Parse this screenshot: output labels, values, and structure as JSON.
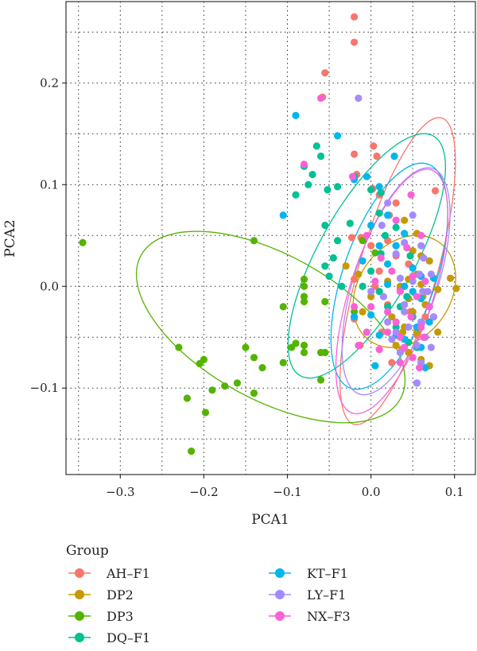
{
  "chart_data": {
    "type": "scatter",
    "xlabel": "PCA1",
    "ylabel": "PCA2",
    "xlim": [
      -0.365,
      0.125
    ],
    "ylim": [
      -0.185,
      0.28
    ],
    "x_ticks": [
      {
        "value": -0.3,
        "label": "−0.3"
      },
      {
        "value": -0.2,
        "label": "−0.2"
      },
      {
        "value": -0.1,
        "label": "−0.1"
      },
      {
        "value": 0.0,
        "label": "0.0"
      },
      {
        "value": 0.1,
        "label": "0.1"
      }
    ],
    "y_ticks": [
      {
        "value": -0.1,
        "label": "−0.1"
      },
      {
        "value": 0.0,
        "label": "0.0"
      },
      {
        "value": 0.1,
        "label": "0.1"
      },
      {
        "value": 0.2,
        "label": "0.2"
      }
    ],
    "grid": "dotted",
    "legend_title": "Group",
    "legend_position": "bottom",
    "series": [
      {
        "name": "AH–F1",
        "color": "#F8766D",
        "ellipse": {
          "cx": 0.032,
          "cy": 0.015,
          "rx": 0.172,
          "ry": 0.042,
          "angle": -74
        },
        "points": [
          [
            -0.02,
            0.265
          ],
          [
            -0.02,
            0.24
          ],
          [
            -0.055,
            0.21
          ],
          [
            -0.058,
            0.186
          ],
          [
            -0.02,
            0.13
          ],
          [
            0.003,
            0.138
          ],
          [
            0.007,
            0.128
          ],
          [
            -0.017,
            0.11
          ],
          [
            0.002,
            0.096
          ],
          [
            0.01,
            0.09
          ],
          [
            0.03,
            0.082
          ],
          [
            0.077,
            0.094
          ],
          [
            0.022,
            0.07
          ],
          [
            -0.023,
            0.048
          ],
          [
            -0.012,
            0.048
          ],
          [
            0.0,
            0.04
          ],
          [
            0.02,
            0.045
          ],
          [
            0.03,
            0.03
          ],
          [
            0.045,
            0.022
          ],
          [
            0.01,
            0.015
          ],
          [
            -0.02,
            0.007
          ],
          [
            0.005,
            0.0
          ],
          [
            0.035,
            -0.003
          ],
          [
            0.02,
            -0.018
          ],
          [
            0.047,
            -0.025
          ],
          [
            -0.02,
            -0.032
          ],
          [
            0.013,
            -0.045
          ],
          [
            0.055,
            -0.048
          ],
          [
            0.025,
            -0.075
          ],
          [
            0.037,
            -0.062
          ],
          [
            -0.013,
            -0.058
          ],
          [
            0.065,
            -0.03
          ]
        ]
      },
      {
        "name": "DP2",
        "color": "#C49A00",
        "ellipse": {
          "cx": 0.04,
          "cy": -0.005,
          "rx": 0.05,
          "ry": 0.065,
          "angle": 35
        },
        "points": [
          [
            0.04,
            0.065
          ],
          [
            0.055,
            0.052
          ],
          [
            0.03,
            0.04
          ],
          [
            0.05,
            0.035
          ],
          [
            0.06,
            0.03
          ],
          [
            0.07,
            0.025
          ],
          [
            0.055,
            0.012
          ],
          [
            0.045,
            0.007
          ],
          [
            0.02,
            0.005
          ],
          [
            0.035,
            0.0
          ],
          [
            0.095,
            0.008
          ],
          [
            0.102,
            -0.002
          ],
          [
            0.08,
            -0.003
          ],
          [
            0.06,
            0.002
          ],
          [
            0.045,
            -0.012
          ],
          [
            0.065,
            -0.018
          ],
          [
            0.05,
            -0.025
          ],
          [
            0.075,
            -0.03
          ],
          [
            0.04,
            -0.04
          ],
          [
            0.055,
            -0.045
          ],
          [
            0.08,
            -0.045
          ],
          [
            0.03,
            -0.058
          ],
          [
            0.045,
            -0.065
          ],
          [
            0.06,
            -0.072
          ],
          [
            0.07,
            -0.078
          ],
          [
            -0.03,
            0.02
          ],
          [
            -0.015,
            0.012
          ],
          [
            0.0,
            -0.01
          ],
          [
            -0.01,
            -0.025
          ],
          [
            0.025,
            -0.03
          ],
          [
            0.062,
            -0.01
          ],
          [
            0.038,
            -0.045
          ]
        ]
      },
      {
        "name": "DP3",
        "color": "#53B400",
        "ellipse": {
          "cx": -0.12,
          "cy": -0.04,
          "rx": 0.16,
          "ry": 0.078,
          "angle": 29
        },
        "points": [
          [
            -0.345,
            0.043
          ],
          [
            -0.14,
            0.045
          ],
          [
            -0.2,
            -0.072
          ],
          [
            -0.23,
            -0.06
          ],
          [
            -0.205,
            -0.076
          ],
          [
            -0.22,
            -0.11
          ],
          [
            -0.19,
            -0.102
          ],
          [
            -0.175,
            -0.098
          ],
          [
            -0.16,
            -0.095
          ],
          [
            -0.14,
            -0.105
          ],
          [
            -0.215,
            -0.162
          ],
          [
            -0.198,
            -0.124
          ],
          [
            -0.15,
            -0.06
          ],
          [
            -0.14,
            -0.07
          ],
          [
            -0.13,
            -0.08
          ],
          [
            -0.105,
            -0.075
          ],
          [
            -0.08,
            -0.058
          ],
          [
            -0.09,
            -0.056
          ],
          [
            -0.095,
            -0.06
          ],
          [
            -0.08,
            -0.065
          ],
          [
            -0.06,
            -0.065
          ],
          [
            -0.105,
            -0.02
          ],
          [
            -0.08,
            -0.01
          ],
          [
            -0.08,
            -0.015
          ],
          [
            -0.055,
            -0.015
          ],
          [
            -0.08,
            0.0
          ],
          [
            -0.08,
            0.007
          ],
          [
            -0.06,
            -0.092
          ],
          [
            -0.055,
            -0.065
          ],
          [
            -0.02,
            -0.025
          ],
          [
            -0.01,
            0.045
          ],
          [
            0.005,
            0.033
          ]
        ]
      },
      {
        "name": "DQ–F1",
        "color": "#00C094",
        "ellipse": {
          "cx": -0.005,
          "cy": 0.03,
          "rx": 0.148,
          "ry": 0.052,
          "angle": -61
        },
        "points": [
          [
            -0.065,
            0.138
          ],
          [
            -0.06,
            0.128
          ],
          [
            -0.08,
            0.118
          ],
          [
            -0.07,
            0.11
          ],
          [
            -0.075,
            0.1
          ],
          [
            -0.09,
            0.09
          ],
          [
            -0.052,
            0.095
          ],
          [
            -0.04,
            0.098
          ],
          [
            -0.02,
            0.108
          ],
          [
            0.0,
            0.095
          ],
          [
            0.012,
            0.092
          ],
          [
            0.01,
            0.072
          ],
          [
            -0.025,
            0.062
          ],
          [
            0.03,
            0.058
          ],
          [
            0.017,
            0.05
          ],
          [
            0.012,
            0.032
          ],
          [
            0.047,
            0.03
          ],
          [
            -0.055,
            0.06
          ],
          [
            -0.04,
            0.045
          ],
          [
            -0.045,
            0.028
          ],
          [
            -0.055,
            0.02
          ],
          [
            -0.05,
            0.01
          ],
          [
            -0.035,
            0.0
          ],
          [
            -0.01,
            0.0
          ],
          [
            0.0,
            0.015
          ],
          [
            0.01,
            -0.005
          ],
          [
            0.02,
            -0.02
          ],
          [
            0.035,
            -0.02
          ],
          [
            0.043,
            -0.01
          ],
          [
            0.03,
            -0.04
          ],
          [
            0.05,
            -0.03
          ],
          [
            0.045,
            -0.055
          ],
          [
            0.055,
            -0.06
          ]
        ]
      },
      {
        "name": "KT–F1",
        "color": "#00B6EB",
        "ellipse": {
          "cx": 0.022,
          "cy": 0.01,
          "rx": 0.128,
          "ry": 0.05,
          "angle": -71
        },
        "points": [
          [
            -0.09,
            0.168
          ],
          [
            -0.04,
            0.148
          ],
          [
            0.028,
            0.128
          ],
          [
            -0.105,
            0.07
          ],
          [
            -0.02,
            0.105
          ],
          [
            -0.005,
            0.108
          ],
          [
            0.01,
            0.098
          ],
          [
            0.02,
            0.07
          ],
          [
            0.0,
            0.06
          ],
          [
            0.04,
            0.052
          ],
          [
            0.03,
            0.04
          ],
          [
            0.01,
            0.04
          ],
          [
            -0.01,
            0.025
          ],
          [
            0.02,
            0.022
          ],
          [
            0.05,
            0.018
          ],
          [
            0.06,
            0.01
          ],
          [
            0.075,
            0.008
          ],
          [
            0.02,
            0.002
          ],
          [
            0.04,
            0.0
          ],
          [
            0.05,
            -0.005
          ],
          [
            0.06,
            -0.012
          ],
          [
            0.0,
            -0.028
          ],
          [
            -0.02,
            -0.03
          ],
          [
            0.01,
            -0.048
          ],
          [
            0.04,
            -0.052
          ],
          [
            0.06,
            -0.06
          ],
          [
            0.065,
            -0.08
          ],
          [
            0.055,
            -0.095
          ],
          [
            0.03,
            -0.048
          ],
          [
            0.055,
            -0.04
          ],
          [
            0.07,
            -0.035
          ],
          [
            0.005,
            -0.078
          ]
        ]
      },
      {
        "name": "LY–F1",
        "color": "#A58AFF",
        "ellipse": {
          "cx": 0.03,
          "cy": 0.005,
          "rx": 0.128,
          "ry": 0.045,
          "angle": -72
        },
        "points": [
          [
            -0.015,
            0.185
          ],
          [
            0.02,
            0.082
          ],
          [
            0.05,
            0.07
          ],
          [
            0.013,
            0.06
          ],
          [
            0.04,
            0.043
          ],
          [
            0.06,
            0.04
          ],
          [
            0.03,
            0.032
          ],
          [
            0.063,
            0.028
          ],
          [
            0.072,
            0.012
          ],
          [
            0.058,
            0.012
          ],
          [
            0.035,
            0.008
          ],
          [
            0.05,
            0.005
          ],
          [
            0.062,
            -0.005
          ],
          [
            0.07,
            -0.02
          ],
          [
            0.04,
            -0.025
          ],
          [
            0.075,
            -0.03
          ],
          [
            0.06,
            -0.035
          ],
          [
            0.045,
            -0.04
          ],
          [
            0.03,
            -0.045
          ],
          [
            0.065,
            -0.05
          ],
          [
            0.055,
            -0.058
          ],
          [
            0.05,
            -0.07
          ],
          [
            0.06,
            -0.075
          ],
          [
            0.055,
            -0.095
          ],
          [
            0.025,
            -0.052
          ],
          [
            0.04,
            -0.018
          ],
          [
            0.068,
            -0.005
          ],
          [
            0.015,
            -0.01
          ],
          [
            0.0,
            -0.005
          ],
          [
            0.02,
            -0.035
          ],
          [
            0.035,
            -0.065
          ],
          [
            0.072,
            -0.06
          ]
        ]
      },
      {
        "name": "NX–F3",
        "color": "#FB61D7",
        "ellipse": {
          "cx": 0.025,
          "cy": -0.005,
          "rx": 0.138,
          "ry": 0.045,
          "angle": -72
        },
        "points": [
          [
            -0.06,
            0.185
          ],
          [
            -0.08,
            0.12
          ],
          [
            -0.022,
            0.108
          ],
          [
            0.048,
            0.09
          ],
          [
            0.03,
            0.065
          ],
          [
            0.06,
            0.05
          ],
          [
            -0.005,
            0.05
          ],
          [
            0.043,
            0.038
          ],
          [
            0.012,
            0.028
          ],
          [
            0.025,
            0.015
          ],
          [
            0.05,
            0.01
          ],
          [
            0.065,
            0.005
          ],
          [
            0.005,
            0.005
          ],
          [
            0.035,
            -0.005
          ],
          [
            0.055,
            -0.01
          ],
          [
            0.07,
            -0.02
          ],
          [
            -0.02,
            -0.02
          ],
          [
            0.02,
            -0.025
          ],
          [
            0.048,
            -0.03
          ],
          [
            0.06,
            -0.04
          ],
          [
            0.02,
            -0.045
          ],
          [
            0.035,
            -0.05
          ],
          [
            0.063,
            -0.05
          ],
          [
            -0.015,
            -0.058
          ],
          [
            0.04,
            -0.06
          ],
          [
            0.05,
            -0.07
          ],
          [
            0.058,
            -0.08
          ],
          [
            0.035,
            -0.075
          ],
          [
            0.0,
            -0.02
          ],
          [
            0.03,
            -0.035
          ],
          [
            -0.005,
            -0.045
          ],
          [
            0.01,
            -0.062
          ]
        ]
      }
    ]
  }
}
